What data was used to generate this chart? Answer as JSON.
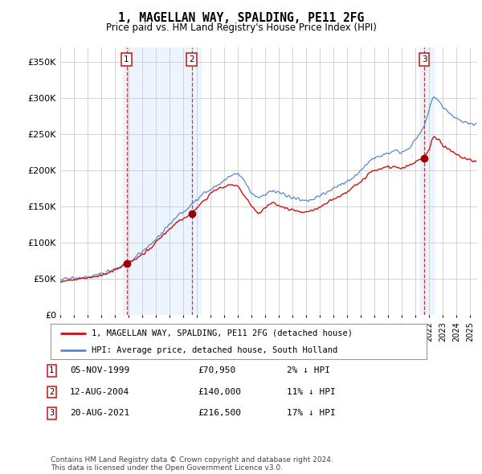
{
  "title": "1, MAGELLAN WAY, SPALDING, PE11 2FG",
  "subtitle": "Price paid vs. HM Land Registry's House Price Index (HPI)",
  "ylabel_ticks": [
    "£0",
    "£50K",
    "£100K",
    "£150K",
    "£200K",
    "£250K",
    "£300K",
    "£350K"
  ],
  "y_values": [
    0,
    50000,
    100000,
    150000,
    200000,
    250000,
    300000,
    350000
  ],
  "ylim": [
    0,
    370000
  ],
  "xlim_start": 1995.0,
  "xlim_end": 2025.5,
  "sale_points": [
    {
      "date_decimal": 1999.85,
      "price": 70950,
      "label": "1"
    },
    {
      "date_decimal": 2004.62,
      "price": 140000,
      "label": "2"
    },
    {
      "date_decimal": 2021.63,
      "price": 216500,
      "label": "3"
    }
  ],
  "vline_dates": [
    1999.85,
    2004.62,
    2021.63
  ],
  "legend_entries": [
    "1, MAGELLAN WAY, SPALDING, PE11 2FG (detached house)",
    "HPI: Average price, detached house, South Holland"
  ],
  "table_rows": [
    {
      "num": "1",
      "date": "05-NOV-1999",
      "price": "£70,950",
      "note": "2% ↓ HPI"
    },
    {
      "num": "2",
      "date": "12-AUG-2004",
      "price": "£140,000",
      "note": "11% ↓ HPI"
    },
    {
      "num": "3",
      "date": "20-AUG-2021",
      "price": "£216,500",
      "note": "17% ↓ HPI"
    }
  ],
  "footer": "Contains HM Land Registry data © Crown copyright and database right 2024.\nThis data is licensed under the Open Government Licence v3.0.",
  "hpi_color": "#5588cc",
  "price_color": "#cc1111",
  "background_color": "#ffffff",
  "plot_bg_color": "#ffffff",
  "grid_color": "#cccccc",
  "shade_color": "#ddeeff",
  "x_ticks": [
    1995,
    1996,
    1997,
    1998,
    1999,
    2000,
    2001,
    2002,
    2003,
    2004,
    2005,
    2006,
    2007,
    2008,
    2009,
    2010,
    2011,
    2012,
    2013,
    2014,
    2015,
    2016,
    2017,
    2018,
    2019,
    2020,
    2021,
    2022,
    2023,
    2024,
    2025
  ]
}
